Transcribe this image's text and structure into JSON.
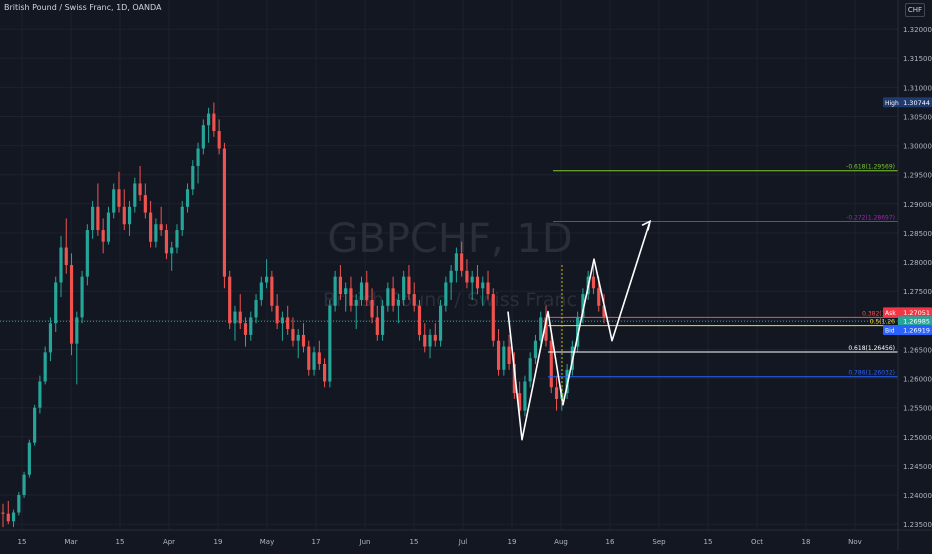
{
  "header": {
    "symbol_title": "British Pound / Swiss Franc, 1D, OANDA",
    "currency_button": "CHF"
  },
  "watermark": {
    "ticker": "GBPCHF, 1D",
    "name": "British Pound / Swiss Franc"
  },
  "colors": {
    "background": "#131722",
    "up_candle": "#26a69a",
    "down_candle": "#ef5350",
    "grid": "#1e222d",
    "axis_text": "#b2b5be",
    "drawing": "#ffffff"
  },
  "chart_data": {
    "type": "candlestick",
    "instrument": "British Pound / Swiss Franc",
    "timeframe": "1D",
    "source": "OANDA",
    "x_axis": {
      "tick_labels": [
        "15",
        "Mar",
        "15",
        "Apr",
        "19",
        "May",
        "17",
        "Jun",
        "15",
        "Jul",
        "19",
        "Aug",
        "16",
        "Sep",
        "15",
        "Oct",
        "18",
        "Nov"
      ]
    },
    "y_axis": {
      "unit": "CHF",
      "ylim": [
        1.234,
        1.325
      ],
      "tick_values": [
        1.235,
        1.24,
        1.245,
        1.25,
        1.255,
        1.26,
        1.265,
        1.27,
        1.275,
        1.28,
        1.285,
        1.29,
        1.295,
        1.3,
        1.305,
        1.31,
        1.315,
        1.32
      ],
      "tick_labels": [
        "1.23500",
        "1.24000",
        "1.24500",
        "1.25000",
        "1.25500",
        "1.26000",
        "1.26500",
        "1.27000",
        "1.27500",
        "1.28000",
        "1.28500",
        "1.29000",
        "1.29500",
        "1.30000",
        "1.30500",
        "1.31000",
        "1.31500",
        "1.32000"
      ]
    },
    "price_badges": [
      {
        "label": "High",
        "value": "1.30744",
        "price": 1.30744,
        "color": "#1e3a6e"
      },
      {
        "label": "Ask",
        "value": "1.27051",
        "price": 1.27051,
        "color": "#f23645"
      },
      {
        "label": "",
        "value": "1.26985",
        "price": 1.26985,
        "color": "#26a69a"
      },
      {
        "label": "Bid",
        "value": "1.26919",
        "price": 1.26919,
        "color": "#2962ff"
      }
    ],
    "current_price_line": 1.26985,
    "fib_levels": [
      {
        "label": "-0.618(1.29569)",
        "price": 1.29569,
        "color": "#7cca2f"
      },
      {
        "label": "-0.272(1.28697)",
        "price": 1.28697,
        "color": "#9c27b0"
      },
      {
        "label": "0.382(1.27",
        "price": 1.2705,
        "color": "#ef5350"
      },
      {
        "label": "0.5(1.26",
        "price": 1.2691,
        "color": "#f7d83a"
      },
      {
        "label": "0.618(1.26456)",
        "price": 1.26456,
        "color": "#ffffff"
      },
      {
        "label": "0.786(1.26032)",
        "price": 1.26032,
        "color": "#2962ff"
      }
    ],
    "candles": [
      [
        1.237,
        1.2385,
        1.2345,
        1.2368
      ],
      [
        1.2368,
        1.239,
        1.235,
        1.2355
      ],
      [
        1.2355,
        1.2375,
        1.2345,
        1.237
      ],
      [
        1.237,
        1.2405,
        1.2365,
        1.24
      ],
      [
        1.24,
        1.244,
        1.2395,
        1.2435
      ],
      [
        1.2435,
        1.2495,
        1.243,
        1.249
      ],
      [
        1.249,
        1.2555,
        1.2485,
        1.255
      ],
      [
        1.255,
        1.2605,
        1.254,
        1.2595
      ],
      [
        1.2595,
        1.2655,
        1.259,
        1.2645
      ],
      [
        1.2645,
        1.2705,
        1.263,
        1.2695
      ],
      [
        1.2695,
        1.2775,
        1.268,
        1.2765
      ],
      [
        1.2765,
        1.2845,
        1.274,
        1.2825
      ],
      [
        1.2825,
        1.2875,
        1.278,
        1.2795
      ],
      [
        1.2795,
        1.2815,
        1.264,
        1.266
      ],
      [
        1.266,
        1.2715,
        1.259,
        1.2705
      ],
      [
        1.2705,
        1.2785,
        1.2695,
        1.2775
      ],
      [
        1.2775,
        1.2865,
        1.276,
        1.2855
      ],
      [
        1.2855,
        1.2905,
        1.284,
        1.2895
      ],
      [
        1.2895,
        1.2935,
        1.2845,
        1.2855
      ],
      [
        1.2855,
        1.2875,
        1.2815,
        1.2835
      ],
      [
        1.2835,
        1.2895,
        1.283,
        1.2885
      ],
      [
        1.2885,
        1.2935,
        1.2875,
        1.2925
      ],
      [
        1.2925,
        1.2955,
        1.2885,
        1.2895
      ],
      [
        1.2895,
        1.2925,
        1.2855,
        1.2865
      ],
      [
        1.2865,
        1.2905,
        1.2845,
        1.2895
      ],
      [
        1.2895,
        1.2945,
        1.2885,
        1.2935
      ],
      [
        1.2935,
        1.2965,
        1.2905,
        1.2915
      ],
      [
        1.2915,
        1.2935,
        1.2875,
        1.2885
      ],
      [
        1.2885,
        1.2905,
        1.2825,
        1.2835
      ],
      [
        1.2835,
        1.2875,
        1.2825,
        1.2865
      ],
      [
        1.2865,
        1.2895,
        1.2845,
        1.2855
      ],
      [
        1.2855,
        1.2865,
        1.2805,
        1.2815
      ],
      [
        1.2815,
        1.2835,
        1.2785,
        1.2825
      ],
      [
        1.2825,
        1.2865,
        1.2815,
        1.2855
      ],
      [
        1.2855,
        1.2905,
        1.2845,
        1.2895
      ],
      [
        1.2895,
        1.2935,
        1.2885,
        1.2925
      ],
      [
        1.2925,
        1.2975,
        1.2915,
        1.2965
      ],
      [
        1.2965,
        1.3005,
        1.2935,
        1.2995
      ],
      [
        1.2995,
        1.3045,
        1.2985,
        1.3035
      ],
      [
        1.3035,
        1.3065,
        1.3005,
        1.3055
      ],
      [
        1.3055,
        1.3074,
        1.3015,
        1.3025
      ],
      [
        1.3025,
        1.3045,
        1.2985,
        1.2995
      ],
      [
        1.2995,
        1.3005,
        1.2755,
        1.2775
      ],
      [
        1.2775,
        1.2785,
        1.2685,
        1.2695
      ],
      [
        1.2695,
        1.2725,
        1.2665,
        1.2715
      ],
      [
        1.2715,
        1.2745,
        1.2685,
        1.2695
      ],
      [
        1.2695,
        1.2705,
        1.2655,
        1.2675
      ],
      [
        1.2675,
        1.2715,
        1.2665,
        1.2705
      ],
      [
        1.2705,
        1.2745,
        1.2695,
        1.2735
      ],
      [
        1.2735,
        1.2775,
        1.2725,
        1.2765
      ],
      [
        1.2765,
        1.2805,
        1.2755,
        1.2775
      ],
      [
        1.2775,
        1.2785,
        1.2715,
        1.2725
      ],
      [
        1.2725,
        1.2745,
        1.2685,
        1.2695
      ],
      [
        1.2695,
        1.2715,
        1.2665,
        1.2705
      ],
      [
        1.2705,
        1.2725,
        1.2675,
        1.2685
      ],
      [
        1.2685,
        1.2705,
        1.2655,
        1.2665
      ],
      [
        1.2665,
        1.2685,
        1.2635,
        1.2675
      ],
      [
        1.2675,
        1.2695,
        1.2645,
        1.2655
      ],
      [
        1.2655,
        1.2665,
        1.2605,
        1.2615
      ],
      [
        1.2615,
        1.2655,
        1.2605,
        1.2645
      ],
      [
        1.2645,
        1.2665,
        1.2615,
        1.2625
      ],
      [
        1.2625,
        1.2635,
        1.2585,
        1.2595
      ],
      [
        1.2595,
        1.2735,
        1.2585,
        1.2725
      ],
      [
        1.2725,
        1.2785,
        1.2715,
        1.2775
      ],
      [
        1.2775,
        1.2795,
        1.2735,
        1.2745
      ],
      [
        1.2745,
        1.2765,
        1.2715,
        1.2755
      ],
      [
        1.2755,
        1.2775,
        1.2715,
        1.2725
      ],
      [
        1.2725,
        1.2745,
        1.2685,
        1.2735
      ],
      [
        1.2735,
        1.2775,
        1.2725,
        1.2765
      ],
      [
        1.2765,
        1.2785,
        1.2725,
        1.2735
      ],
      [
        1.2735,
        1.2755,
        1.2695,
        1.2705
      ],
      [
        1.2705,
        1.2725,
        1.2665,
        1.2675
      ],
      [
        1.2675,
        1.2735,
        1.2665,
        1.2725
      ],
      [
        1.2725,
        1.2765,
        1.2715,
        1.2755
      ],
      [
        1.2755,
        1.2775,
        1.2715,
        1.2725
      ],
      [
        1.2725,
        1.2745,
        1.2695,
        1.2735
      ],
      [
        1.2735,
        1.2785,
        1.2725,
        1.2775
      ],
      [
        1.2775,
        1.2795,
        1.2735,
        1.2745
      ],
      [
        1.2745,
        1.2765,
        1.2715,
        1.2725
      ],
      [
        1.2725,
        1.2735,
        1.2665,
        1.2675
      ],
      [
        1.2675,
        1.2695,
        1.2645,
        1.2655
      ],
      [
        1.2655,
        1.2685,
        1.2635,
        1.2675
      ],
      [
        1.2675,
        1.2695,
        1.2655,
        1.2665
      ],
      [
        1.2665,
        1.2735,
        1.2655,
        1.2725
      ],
      [
        1.2725,
        1.2775,
        1.2715,
        1.2765
      ],
      [
        1.2765,
        1.2795,
        1.2735,
        1.2785
      ],
      [
        1.2785,
        1.2825,
        1.2765,
        1.2815
      ],
      [
        1.2815,
        1.2835,
        1.2775,
        1.2785
      ],
      [
        1.2785,
        1.2805,
        1.2755,
        1.2765
      ],
      [
        1.2765,
        1.2785,
        1.2735,
        1.2775
      ],
      [
        1.2775,
        1.2795,
        1.2745,
        1.2755
      ],
      [
        1.2755,
        1.2775,
        1.2725,
        1.2765
      ],
      [
        1.2765,
        1.2785,
        1.2735,
        1.2745
      ],
      [
        1.2745,
        1.2755,
        1.2655,
        1.2665
      ],
      [
        1.2665,
        1.2685,
        1.2605,
        1.2615
      ],
      [
        1.2615,
        1.2665,
        1.2605,
        1.2655
      ],
      [
        1.2655,
        1.2675,
        1.2615,
        1.2625
      ],
      [
        1.2625,
        1.2645,
        1.2565,
        1.2575
      ],
      [
        1.2575,
        1.2595,
        1.2535,
        1.2545
      ],
      [
        1.2545,
        1.2605,
        1.2535,
        1.2595
      ],
      [
        1.2595,
        1.2645,
        1.2585,
        1.2635
      ],
      [
        1.2635,
        1.2675,
        1.2625,
        1.2665
      ],
      [
        1.2665,
        1.2715,
        1.2655,
        1.2705
      ],
      [
        1.2705,
        1.2725,
        1.2655,
        1.2665
      ],
      [
        1.2665,
        1.2675,
        1.2575,
        1.2585
      ],
      [
        1.2585,
        1.2605,
        1.2545,
        1.2565
      ],
      [
        1.2565,
        1.2585,
        1.2545,
        1.2575
      ],
      [
        1.2575,
        1.2625,
        1.2565,
        1.2615
      ],
      [
        1.2615,
        1.2665,
        1.2605,
        1.2655
      ],
      [
        1.2655,
        1.2715,
        1.2645,
        1.2705
      ],
      [
        1.2705,
        1.2755,
        1.2695,
        1.2745
      ],
      [
        1.2745,
        1.2785,
        1.2735,
        1.2775
      ],
      [
        1.2775,
        1.2795,
        1.2745,
        1.2755
      ],
      [
        1.2755,
        1.2775,
        1.2715,
        1.2725
      ],
      [
        1.2725,
        1.2745,
        1.2695,
        1.2705
      ]
    ],
    "drawing_path": {
      "description": "Projected zigzag path with arrow",
      "prices": [
        1.2715,
        1.2495,
        1.2715,
        1.2555,
        1.2805,
        1.2665,
        1.287
      ]
    }
  }
}
